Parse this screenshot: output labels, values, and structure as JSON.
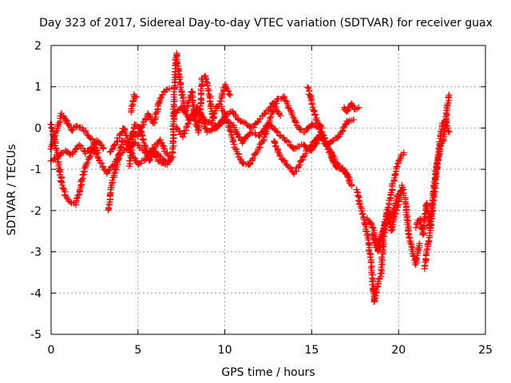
{
  "chart_data": {
    "type": "scatter",
    "title": "Day 323 of 2017, Sidereal Day-to-day VTEC variation (SDTVAR) for receiver guax",
    "xlabel": "GPS time / hours",
    "ylabel": "SDTVAR / TECUs",
    "xlim": [
      0,
      25
    ],
    "ylim": [
      -5,
      2
    ],
    "xticks": [
      "0",
      "5",
      "10",
      "15",
      "20",
      "25"
    ],
    "yticks": [
      "2",
      "1",
      "0",
      "-1",
      "-2",
      "-3",
      "-4",
      "-5"
    ],
    "grid": true,
    "marker": "plus",
    "color": "#ff0000",
    "series": [
      {
        "x": [
          0.0,
          0.2,
          0.4,
          0.6,
          0.8,
          1.0,
          1.2,
          1.4,
          1.6,
          1.8,
          2.0,
          2.2,
          2.4,
          2.6,
          2.8,
          3.0
        ],
        "y": [
          0.1,
          -0.3,
          -0.8,
          -1.3,
          -1.6,
          -1.75,
          -1.8,
          -1.85,
          -1.6,
          -1.2,
          -0.9,
          -0.7,
          -0.5,
          -0.3,
          -0.35,
          -0.5
        ]
      },
      {
        "x": [
          0.0,
          0.3,
          0.6,
          0.9,
          1.2,
          1.5,
          1.8,
          2.1,
          2.4,
          2.7
        ],
        "y": [
          -0.5,
          -0.1,
          0.35,
          0.15,
          -0.05,
          0.05,
          0.0,
          -0.15,
          -0.3,
          -0.6
        ]
      },
      {
        "x": [
          0.0,
          0.4,
          0.8,
          1.2,
          1.6,
          2.0,
          2.4,
          2.8,
          3.2,
          3.6,
          4.0,
          4.4,
          4.8,
          5.2,
          5.6,
          6.0,
          6.4,
          6.8
        ],
        "y": [
          -0.8,
          -0.7,
          -0.55,
          -0.65,
          -0.4,
          -0.6,
          -0.45,
          -0.8,
          -1.1,
          -0.9,
          -0.6,
          -0.5,
          -0.35,
          -0.5,
          -0.7,
          -0.6,
          -0.75,
          -0.8
        ]
      },
      {
        "x": [
          3.3,
          3.5,
          3.8,
          4.1,
          4.4,
          4.7,
          5.0,
          5.3,
          5.6,
          5.9,
          6.2,
          6.5,
          6.8
        ],
        "y": [
          -2.0,
          -1.3,
          -0.9,
          -0.3,
          -0.4,
          -0.1,
          -0.2,
          0.1,
          0.35,
          0.1,
          0.6,
          0.9,
          0.95
        ]
      },
      {
        "x": [
          3.4,
          3.8,
          4.2,
          4.6,
          5.0,
          5.4,
          5.8,
          6.2,
          6.6,
          7.0
        ],
        "y": [
          -0.6,
          -0.3,
          0.0,
          -0.6,
          -0.9,
          -0.75,
          -0.5,
          -0.8,
          -0.9,
          -0.7
        ]
      },
      {
        "x": [
          4.5,
          4.8,
          5.1,
          5.4,
          5.7,
          6.0,
          6.3,
          6.6,
          6.9
        ],
        "y": [
          -0.9,
          0.1,
          0.0,
          -0.4,
          -0.8,
          -0.4,
          -0.3,
          -0.6,
          -0.7
        ]
      },
      {
        "x": [
          4.6,
          4.7,
          4.8,
          4.9
        ],
        "y": [
          0.4,
          0.6,
          0.8,
          0.75
        ]
      },
      {
        "x": [
          7.0,
          7.1,
          7.2,
          7.3,
          7.5,
          7.7,
          7.9,
          8.1,
          8.3,
          8.5,
          8.7,
          8.9,
          9.1,
          9.3,
          9.5,
          9.7,
          10.0,
          10.3
        ],
        "y": [
          -0.6,
          1.0,
          1.8,
          1.5,
          0.9,
          0.4,
          0.6,
          0.9,
          0.1,
          -0.1,
          1.2,
          1.25,
          0.8,
          0.2,
          0.5,
          0.55,
          1.05,
          0.8
        ]
      },
      {
        "x": [
          7.0,
          7.5,
          8.0,
          8.5,
          9.0,
          9.5,
          10.0,
          10.5,
          11.0,
          11.5,
          12.0,
          12.5,
          13.0,
          13.5,
          14.0,
          14.5,
          15.0,
          15.5,
          16.0,
          16.5,
          17.0,
          17.3
        ],
        "y": [
          0.3,
          0.5,
          0.2,
          0.4,
          -0.1,
          0.0,
          0.2,
          0.05,
          -0.35,
          -0.1,
          -0.2,
          0.1,
          -0.1,
          -0.3,
          -0.5,
          -0.4,
          -0.55,
          -0.2,
          -0.5,
          -0.9,
          -1.1,
          -1.4
        ]
      },
      {
        "x": [
          7.2,
          7.6,
          8.0,
          8.4,
          8.8,
          9.2,
          9.6,
          10.0,
          10.4,
          10.8,
          11.2,
          11.6,
          12.0,
          12.4,
          12.8,
          13.2
        ],
        "y": [
          0.0,
          -0.2,
          0.25,
          0.5,
          0.2,
          0.1,
          0.05,
          0.3,
          0.4,
          0.2,
          0.1,
          0.0,
          0.2,
          0.4,
          0.6,
          0.3
        ]
      },
      {
        "x": [
          9.8,
          10.2,
          10.6,
          11.0,
          11.4,
          11.8,
          12.2,
          12.6,
          13.0,
          13.4,
          13.8,
          14.2,
          14.6,
          15.0,
          15.4,
          15.8,
          16.2,
          16.6,
          17.0,
          17.4
        ],
        "y": [
          0.5,
          0.1,
          -0.5,
          -0.85,
          -0.9,
          -0.6,
          -0.3,
          0.2,
          0.7,
          0.75,
          0.4,
          0.0,
          -0.1,
          0.1,
          0.0,
          -0.4,
          -0.3,
          -0.2,
          0.15,
          0.2
        ]
      },
      {
        "x": [
          12.8,
          13.2,
          13.6,
          14.0,
          14.4,
          14.8,
          15.2,
          15.6,
          16.0,
          16.4,
          16.8,
          17.2
        ],
        "y": [
          -0.3,
          -0.7,
          -0.9,
          -1.1,
          -0.8,
          -0.5,
          -0.3,
          -0.1,
          -0.6,
          -0.95,
          -1.0,
          -1.25
        ]
      },
      {
        "x": [
          14.8,
          15.0,
          15.2,
          15.4,
          15.6
        ],
        "y": [
          1.0,
          0.6,
          0.3,
          0.1,
          0.0
        ]
      },
      {
        "x": [
          16.9,
          17.0,
          17.1,
          17.3,
          17.5,
          17.7
        ],
        "y": [
          0.5,
          0.4,
          0.45,
          0.6,
          0.45,
          0.5
        ]
      },
      {
        "x": [
          17.6,
          17.8,
          18.0,
          18.2,
          18.4,
          18.6,
          18.8,
          19.0,
          19.2,
          19.4,
          19.6,
          19.8,
          20.0,
          20.2,
          20.4,
          20.6,
          20.8,
          21.0,
          21.2
        ],
        "y": [
          -1.5,
          -1.9,
          -2.2,
          -2.6,
          -3.2,
          -4.2,
          -3.8,
          -3.5,
          -2.3,
          -2.0,
          -2.5,
          -2.1,
          -1.8,
          -1.4,
          -1.8,
          -2.6,
          -3.0,
          -3.3,
          -2.8
        ]
      },
      {
        "x": [
          18.2,
          18.5,
          18.8,
          19.1,
          19.4,
          19.7,
          20.0,
          20.3
        ],
        "y": [
          -2.2,
          -2.4,
          -2.9,
          -2.5,
          -1.9,
          -1.3,
          -0.8,
          -0.6
        ]
      },
      {
        "x": [
          18.5,
          18.8,
          19.2,
          19.6,
          20.0
        ],
        "y": [
          -2.6,
          -3.0,
          -2.4,
          -2.1,
          -1.6
        ]
      },
      {
        "x": [
          21.0,
          21.2,
          21.4,
          21.6,
          21.8,
          22.0,
          22.2,
          22.4,
          22.6,
          22.8,
          22.9
        ],
        "y": [
          -2.4,
          -2.2,
          -2.6,
          -1.8,
          -2.4,
          -1.6,
          -0.9,
          -0.5,
          -0.2,
          0.5,
          0.8
        ]
      },
      {
        "x": [
          21.5,
          21.7,
          21.9,
          22.1,
          22.3,
          22.5,
          22.7,
          22.9
        ],
        "y": [
          -3.4,
          -2.8,
          -2.2,
          -1.4,
          -0.6,
          0.1,
          0.2,
          -0.1
        ]
      }
    ]
  }
}
